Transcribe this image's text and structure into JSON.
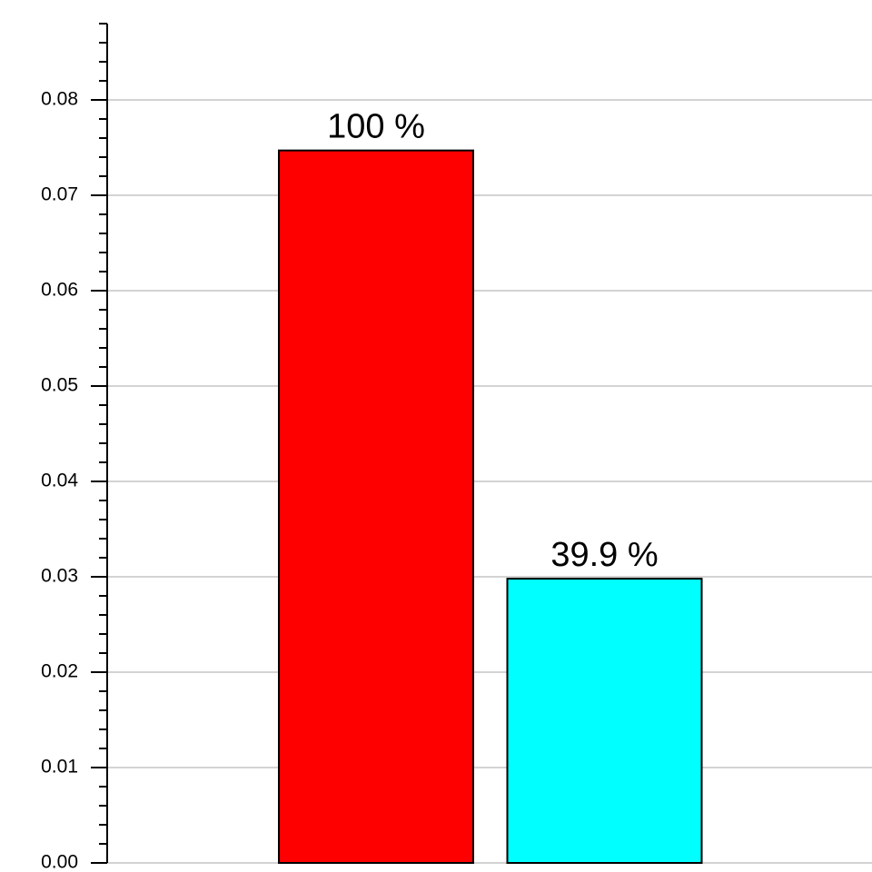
{
  "chart_data": {
    "type": "bar",
    "categories": [
      null,
      null
    ],
    "values": [
      0.0747,
      0.0298
    ],
    "colors": [
      "#ff0000",
      "#00ffff"
    ],
    "bar_labels": [
      "100 %",
      "39.9 %"
    ],
    "ylim": [
      0,
      0.088
    ],
    "yticks": [
      {
        "value": 0,
        "label": "0.00"
      },
      0.01,
      0.02,
      0.03,
      0.04,
      0.05,
      0.06,
      0.07,
      0.08
    ],
    "minor_yticks": [
      0.002,
      0.004,
      0.006,
      0.008,
      0.012,
      0.014,
      0.016,
      0.018,
      0.022,
      0.024,
      0.026,
      0.028,
      0.032,
      0.034,
      0.036,
      0.038,
      0.042,
      0.044,
      0.046,
      0.048,
      0.052,
      0.054,
      0.056,
      0.058,
      0.062,
      0.064,
      0.066,
      0.068,
      0.072,
      0.074,
      0.076,
      0.078,
      0.082,
      0.084,
      0.086,
      0.088
    ],
    "grid": true
  }
}
